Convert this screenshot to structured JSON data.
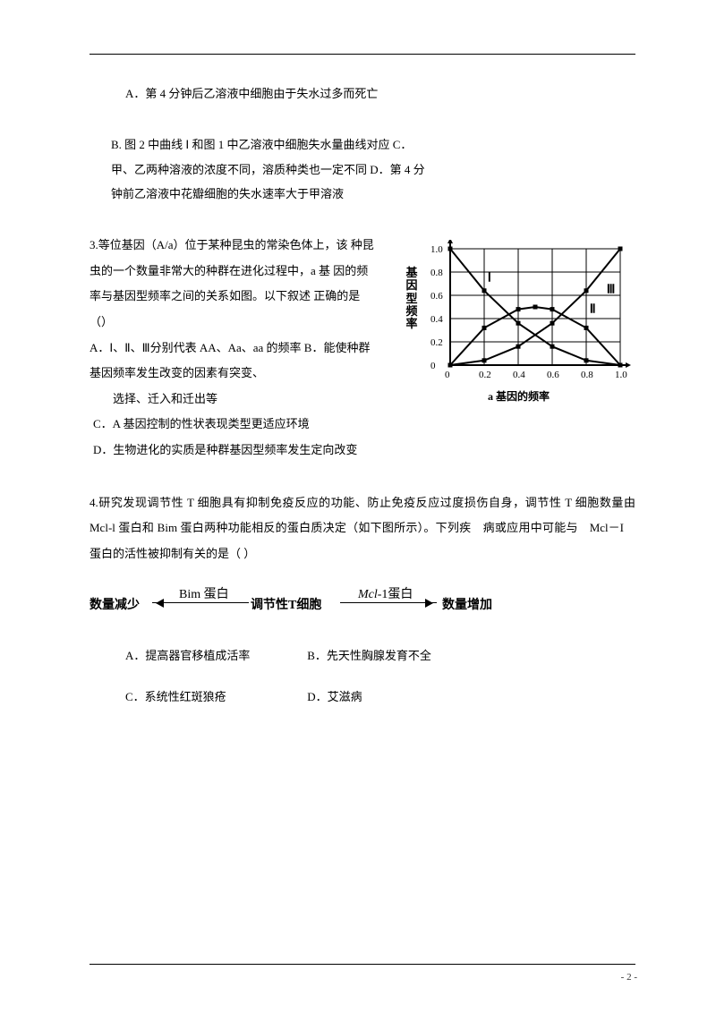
{
  "q2": {
    "optA": "A．第 4 分钟后乙溶液中细胞由于失水过多而死亡",
    "optRest": "B. 图 2 中曲线 Ⅰ 和图 1 中乙溶液中细胞失水量曲线对应 C．甲、乙两种溶液的浓度不同，溶质种类也一定不同 D．第 4 分钟前乙溶液中花瓣细胞的失水速率大于甲溶液"
  },
  "q3": {
    "stem": "3.等位基因（A/a）位于某种昆虫的常染色体上，该 种昆虫的一个数量非常大的种群在进化过程中，a 基 因的频率与基因型频率之间的关系如图。以下叙述 正确的是（）",
    "optA": "A．Ⅰ、Ⅱ、Ⅲ分别代表 AA、Aa、aa 的频率 B．能使种群基因频率发生改变的因素有突变、",
    "optA2": "选择、迁入和迁出等",
    "optC": "C．A 基因控制的性状表现类型更适应环境",
    "optD": "D．生物进化的实质是种群基因型频率发生定向改变",
    "chart": {
      "y_label": "基因型频率",
      "x_label": "a 基因的频率",
      "x_ticks": [
        "0",
        "0.2",
        "0.4",
        "0.6",
        "0.8",
        "1.0"
      ],
      "y_ticks": [
        "0",
        "0.2",
        "0.4",
        "0.6",
        "0.8",
        "1.0"
      ],
      "curves": {
        "I": [
          [
            0,
            1
          ],
          [
            0.2,
            0.64
          ],
          [
            0.4,
            0.36
          ],
          [
            0.6,
            0.16
          ],
          [
            0.8,
            0.04
          ],
          [
            1.0,
            0
          ]
        ],
        "II": [
          [
            0,
            0
          ],
          [
            0.2,
            0.32
          ],
          [
            0.4,
            0.48
          ],
          [
            0.5,
            0.5
          ],
          [
            0.6,
            0.48
          ],
          [
            0.8,
            0.32
          ],
          [
            1.0,
            0
          ]
        ],
        "III": [
          [
            0,
            0
          ],
          [
            0.2,
            0.04
          ],
          [
            0.4,
            0.16
          ],
          [
            0.6,
            0.36
          ],
          [
            0.8,
            0.64
          ],
          [
            1.0,
            1
          ]
        ]
      },
      "labels": {
        "I": "Ⅰ",
        "II": "Ⅱ",
        "III": "Ⅲ"
      },
      "style": {
        "axis_color": "#000000",
        "grid_color": "#000000",
        "bg": "#ffffff",
        "line_width": 2,
        "marker": "square",
        "marker_size": 5,
        "font_size": 11
      }
    }
  },
  "q4": {
    "stem": "4.研究发现调节性 T 细胞具有抑制免疫反应的功能、防止免疫反应过度损伤自身，调节性 T 细胞数量由 Mcl-l 蛋白和 Bim 蛋白两种功能相反的蛋白质决定（如下图所示）。下列疾 病或应用中可能与 Mcl－I 蛋白的活性被抑制有关的是（ ）",
    "diagram": {
      "left": "数量减少",
      "mid": "调节性T细胞",
      "right": "数量增加",
      "top_left": "Bim 蛋白",
      "top_right_html": "Mcl-1蛋白",
      "style": {
        "font_weight": "bold",
        "font_size": 14,
        "italic_part": "Mcl"
      }
    },
    "optA": "A．提高器官移植成活率",
    "optB": "B．先天性胸腺发育不全",
    "optC": "C．系统性红斑狼疮",
    "optD": "D．艾滋病"
  },
  "page_num": "- 2 -"
}
